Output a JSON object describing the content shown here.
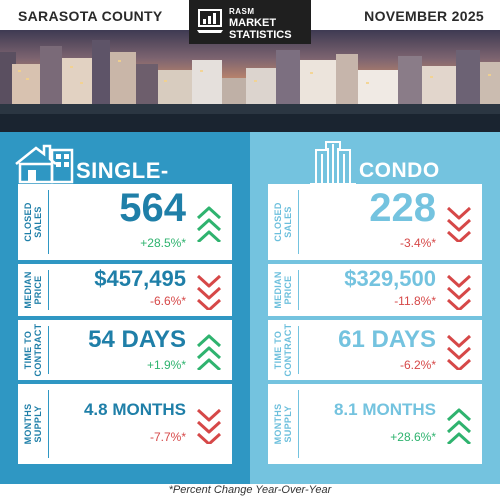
{
  "header": {
    "county": "SARASOTA COUNTY",
    "month": "NOVEMBER 2025",
    "logo": {
      "line1": "RASM",
      "line2": "MARKET",
      "line3": "STATISTICS",
      "icon": "chart-monitor-icon"
    }
  },
  "colors": {
    "single_family_bg": "#2f97c3",
    "condo_bg": "#74c3df",
    "up_green": "#2fb36f",
    "down_red": "#d64848"
  },
  "single_family": {
    "title": "SINGLE-FAMILY",
    "icon": "house-icon",
    "metrics": [
      {
        "label": "CLOSED\nSALES",
        "value": "564",
        "change": "+28.5%*",
        "trend": "up"
      },
      {
        "label": "MEDIAN\nPRICE",
        "value": "$457,495",
        "change": "-6.6%*",
        "trend": "down"
      },
      {
        "label": "TIME TO\nCONTRACT",
        "value": "54 DAYS",
        "change": "+1.9%*",
        "trend": "up"
      },
      {
        "label": "MONTHS\nSUPPLY",
        "value": "4.8 MONTHS",
        "change": "-7.7%*",
        "trend": "down"
      }
    ]
  },
  "condo": {
    "title": "CONDO",
    "icon": "building-icon",
    "metrics": [
      {
        "label": "CLOSED\nSALES",
        "value": "228",
        "change": "-3.4%*",
        "trend": "down"
      },
      {
        "label": "MEDIAN\nPRICE",
        "value": "$329,500",
        "change": "-11.8%*",
        "trend": "down"
      },
      {
        "label": "TIME TO\nCONTRACT",
        "value": "61 DAYS",
        "change": "-6.2%*",
        "trend": "down"
      },
      {
        "label": "MONTHS\nSUPPLY",
        "value": "8.1 MONTHS",
        "change": "+28.6%*",
        "trend": "up"
      }
    ]
  },
  "footnote": "*Percent Change Year-Over-Year"
}
